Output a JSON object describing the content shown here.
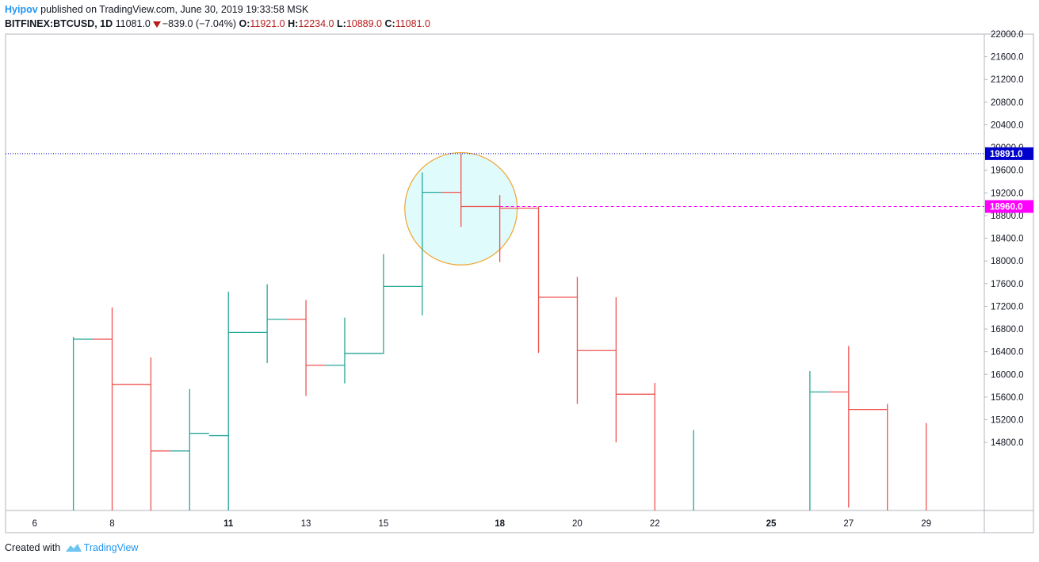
{
  "header": {
    "author": "Hyipov",
    "published_text": "published on TradingView.com, June 30, 2019 19:33:58 MSK",
    "symbol": "BITFINEX:BTCUSD, 1D",
    "last": "11081.0",
    "change": "−839.0 (−7.04%)",
    "open_label": "O:",
    "open": "11921.0",
    "high_label": "H:",
    "high": "12234.0",
    "low_label": "L:",
    "low": "10889.0",
    "close_label": "C:",
    "close": "11081.0"
  },
  "footer": {
    "created_with": "Created with",
    "brand": "TradingView"
  },
  "colors": {
    "up": "#26a69a",
    "down": "#ef5350",
    "circle_fill": "#e0fbfb",
    "circle_stroke": "#f0a530",
    "blue_line": "#0000cc",
    "magenta_line": "#ff00ff"
  },
  "chart_data": {
    "type": "ohlc",
    "x_tick_labels": [
      {
        "day": 6,
        "label": "6",
        "bold": false
      },
      {
        "day": 8,
        "label": "8",
        "bold": false
      },
      {
        "day": 11,
        "label": "11",
        "bold": true
      },
      {
        "day": 13,
        "label": "13",
        "bold": false
      },
      {
        "day": 15,
        "label": "15",
        "bold": false
      },
      {
        "day": 18,
        "label": "18",
        "bold": true
      },
      {
        "day": 20,
        "label": "20",
        "bold": false
      },
      {
        "day": 22,
        "label": "22",
        "bold": false
      },
      {
        "day": 25,
        "label": "25",
        "bold": true
      },
      {
        "day": 27,
        "label": "27",
        "bold": false
      },
      {
        "day": 29,
        "label": "29",
        "bold": false
      }
    ],
    "y_ticks": [
      14800,
      15200,
      15600,
      16000,
      16400,
      16800,
      17200,
      17600,
      18000,
      18400,
      18800,
      19200,
      19600,
      20000,
      20400,
      20800,
      21200,
      21600,
      22000
    ],
    "y_tick_labels": [
      "14800.0",
      "15200.0",
      "15600.0",
      "16000.0",
      "16400.0",
      "16800.0",
      "17200.0",
      "17600.0",
      "18000.0",
      "18400.0",
      "18800.0",
      "19200.0",
      "19600.0",
      "20000.0",
      "20400.0",
      "20800.0",
      "21200.0",
      "21600.0",
      "22000.0"
    ],
    "ylim": [
      13600,
      22000
    ],
    "xlim_days": [
      5.25,
      30.5
    ],
    "bars": [
      {
        "day": 7,
        "open": 13000,
        "high": 16660,
        "low": 13000,
        "close": 16620
      },
      {
        "day": 8,
        "open": 16620,
        "high": 17180,
        "low": 13000,
        "close": 15820
      },
      {
        "day": 9,
        "open": 15820,
        "high": 16300,
        "low": 13000,
        "close": 14650
      },
      {
        "day": 10,
        "open": 14650,
        "high": 15740,
        "low": 13000,
        "close": 14960
      },
      {
        "day": 11,
        "open": 14920,
        "high": 17460,
        "low": 13000,
        "close": 16740
      },
      {
        "day": 12,
        "open": 16740,
        "high": 17590,
        "low": 16200,
        "close": 16970
      },
      {
        "day": 13,
        "open": 16970,
        "high": 17310,
        "low": 15620,
        "close": 16160
      },
      {
        "day": 14,
        "open": 16160,
        "high": 17000,
        "low": 15840,
        "close": 16370
      },
      {
        "day": 15,
        "open": 16370,
        "high": 18120,
        "low": 16360,
        "close": 17550
      },
      {
        "day": 16,
        "open": 17550,
        "high": 19560,
        "low": 17040,
        "close": 19210
      },
      {
        "day": 17,
        "open": 19210,
        "high": 19891,
        "low": 18600,
        "close": 18960
      },
      {
        "day": 18,
        "open": 18960,
        "high": 19160,
        "low": 17980,
        "close": 18930
      },
      {
        "day": 19,
        "open": 18930,
        "high": 18960,
        "low": 16380,
        "close": 17360
      },
      {
        "day": 20,
        "open": 17360,
        "high": 17720,
        "low": 15480,
        "close": 16420
      },
      {
        "day": 21,
        "open": 16420,
        "high": 17360,
        "low": 14800,
        "close": 15650
      },
      {
        "day": 22,
        "open": 15650,
        "high": 15850,
        "low": 13000,
        "close": 13200
      },
      {
        "day": 23,
        "open": 13200,
        "high": 15020,
        "low": 13000,
        "close": 13300
      },
      {
        "day": 26,
        "open": 13300,
        "high": 16060,
        "low": 13000,
        "close": 15690
      },
      {
        "day": 27,
        "open": 15690,
        "high": 16500,
        "low": 13650,
        "close": 15380
      },
      {
        "day": 28,
        "open": 15380,
        "high": 15480,
        "low": 13000,
        "close": 13300
      },
      {
        "day": 29,
        "open": 13300,
        "high": 15140,
        "low": 13000,
        "close": 13100
      }
    ],
    "horizontal_lines": [
      {
        "value": 19891,
        "label": "19891.0",
        "style": "dotted",
        "color": "#0000cc"
      },
      {
        "value": 18960,
        "label": "18960.0",
        "style": "dashed",
        "color": "#ff00ff",
        "start_day": 17
      }
    ],
    "annotations": [
      {
        "type": "circle",
        "center_day": 17,
        "center_value": 18920,
        "radius_days": 2.9
      }
    ]
  }
}
